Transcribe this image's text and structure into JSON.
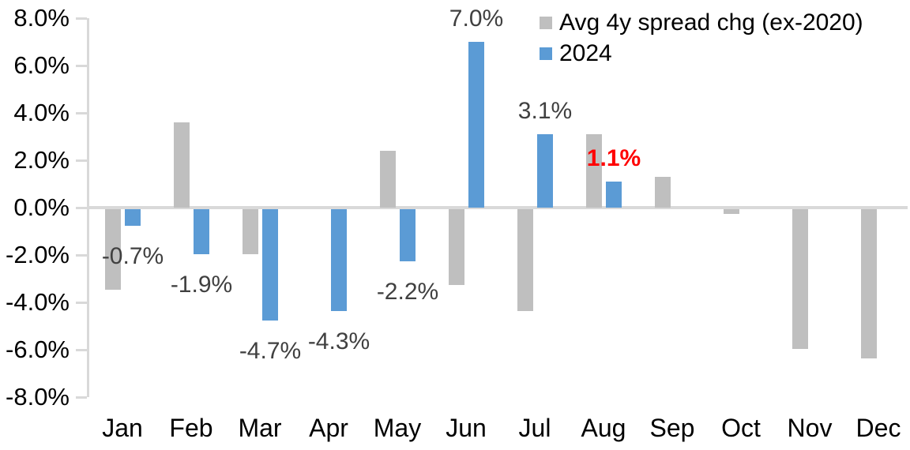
{
  "chart_data": {
    "type": "bar",
    "title": "",
    "xlabel": "",
    "ylabel": "",
    "categories": [
      "Jan",
      "Feb",
      "Mar",
      "Apr",
      "May",
      "Jun",
      "Jul",
      "Aug",
      "Sep",
      "Oct",
      "Nov",
      "Dec"
    ],
    "series": [
      {
        "name": "Avg 4y spread chg (ex-2020)",
        "color": "#bfbfbf",
        "values": [
          -3.4,
          3.6,
          -1.9,
          0.0,
          2.4,
          -3.2,
          -4.3,
          3.1,
          1.3,
          -0.2,
          -5.9,
          -6.3
        ]
      },
      {
        "name": "2024",
        "color": "#5b9bd5",
        "values": [
          -0.7,
          -1.9,
          -4.7,
          -4.3,
          -2.2,
          7.0,
          3.1,
          1.1,
          null,
          null,
          null,
          null
        ]
      }
    ],
    "data_labels": [
      {
        "index": 0,
        "text": "-0.7%",
        "color": "#404040",
        "bold": false
      },
      {
        "index": 1,
        "text": "-1.9%",
        "color": "#404040",
        "bold": false
      },
      {
        "index": 2,
        "text": "-4.7%",
        "color": "#404040",
        "bold": false
      },
      {
        "index": 3,
        "text": "-4.3%",
        "color": "#404040",
        "bold": false
      },
      {
        "index": 4,
        "text": "-2.2%",
        "color": "#404040",
        "bold": false
      },
      {
        "index": 5,
        "text": "7.0%",
        "color": "#404040",
        "bold": false
      },
      {
        "index": 6,
        "text": "3.1%",
        "color": "#404040",
        "bold": false
      },
      {
        "index": 7,
        "text": "1.1%",
        "color": "#ff0000",
        "bold": true
      }
    ],
    "y_ticks": [
      {
        "label": "8.0%",
        "value": 8
      },
      {
        "label": "6.0%",
        "value": 6
      },
      {
        "label": "4.0%",
        "value": 4
      },
      {
        "label": "2.0%",
        "value": 2
      },
      {
        "label": "0.0%",
        "value": 0
      },
      {
        "label": "-2.0%",
        "value": -2
      },
      {
        "label": "-4.0%",
        "value": -4
      },
      {
        "label": "-6.0%",
        "value": -6
      },
      {
        "label": "-8.0%",
        "value": -8
      }
    ],
    "ylim": [
      -8,
      8
    ],
    "grid": false,
    "legend_position": "top-right",
    "axis_color": "#d9d9d9"
  },
  "legend": {
    "items": [
      {
        "label": "Avg 4y spread chg (ex-2020)",
        "color": "#bfbfbf"
      },
      {
        "label": "2024",
        "color": "#5b9bd5"
      }
    ]
  }
}
